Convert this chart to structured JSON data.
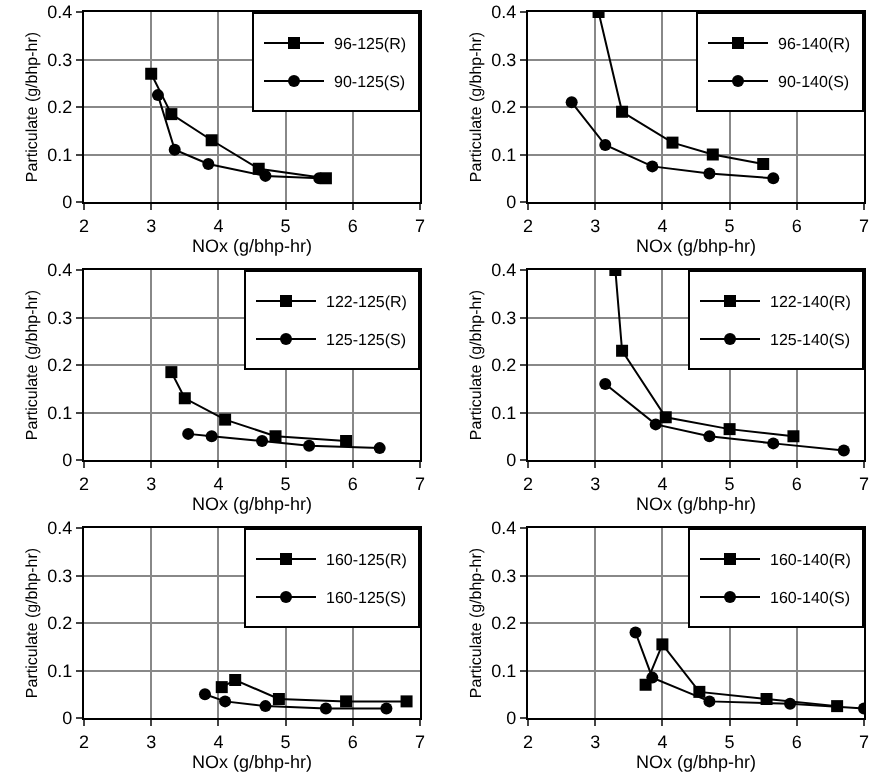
{
  "chart_data": [
    {
      "type": "line",
      "xlabel": "NOx (g/bhp-hr)",
      "ylabel": "Particulate (g/bhp-hr)",
      "xlim": [
        2,
        7
      ],
      "ylim": [
        0,
        0.4
      ],
      "xticks": [
        2,
        3,
        4,
        5,
        6,
        7
      ],
      "yticks": [
        0,
        0.1,
        0.2,
        0.3,
        0.4
      ],
      "grid": true,
      "legend": "top right",
      "series": [
        {
          "name": "96-125(R)",
          "color": "#000000",
          "marker": "square",
          "x": [
            3.0,
            3.3,
            3.9,
            4.6,
            5.6
          ],
          "values": [
            0.27,
            0.185,
            0.13,
            0.07,
            0.05
          ]
        },
        {
          "name": "90-125(S)",
          "color": "#000000",
          "marker": "circle",
          "x": [
            3.1,
            3.35,
            3.85,
            4.7,
            5.5
          ],
          "values": [
            0.225,
            0.11,
            0.08,
            0.055,
            0.05
          ]
        }
      ]
    },
    {
      "type": "line",
      "xlabel": "NOx (g/bhp-hr)",
      "ylabel": "Particulate (g/bhp-hr)",
      "xlim": [
        2,
        7
      ],
      "ylim": [
        0,
        0.4
      ],
      "xticks": [
        2,
        3,
        4,
        5,
        6,
        7
      ],
      "yticks": [
        0,
        0.1,
        0.2,
        0.3,
        0.4
      ],
      "grid": true,
      "legend": "top right",
      "series": [
        {
          "name": "96-140(R)",
          "color": "#000000",
          "marker": "square",
          "x": [
            3.05,
            3.4,
            4.15,
            4.75,
            5.5
          ],
          "values": [
            0.4,
            0.19,
            0.125,
            0.1,
            0.08
          ]
        },
        {
          "name": "90-140(S)",
          "color": "#000000",
          "marker": "circle",
          "x": [
            2.65,
            3.15,
            3.85,
            4.7,
            5.65
          ],
          "values": [
            0.21,
            0.12,
            0.075,
            0.06,
            0.05
          ]
        }
      ]
    },
    {
      "type": "line",
      "xlabel": "NOx (g/bhp-hr)",
      "ylabel": "Particulate (g/bhp-hr)",
      "xlim": [
        2,
        7
      ],
      "ylim": [
        0,
        0.4
      ],
      "xticks": [
        2,
        3,
        4,
        5,
        6,
        7
      ],
      "yticks": [
        0,
        0.1,
        0.2,
        0.3,
        0.4
      ],
      "grid": true,
      "legend": "top right",
      "series": [
        {
          "name": "122-125(R)",
          "color": "#000000",
          "marker": "square",
          "x": [
            3.3,
            3.5,
            4.1,
            4.85,
            5.9
          ],
          "values": [
            0.185,
            0.13,
            0.085,
            0.05,
            0.04
          ]
        },
        {
          "name": "125-125(S)",
          "color": "#000000",
          "marker": "circle",
          "x": [
            3.55,
            3.9,
            4.65,
            5.35,
            6.4
          ],
          "values": [
            0.055,
            0.05,
            0.04,
            0.03,
            0.025
          ]
        }
      ]
    },
    {
      "type": "line",
      "xlabel": "NOx (g/bhp-hr)",
      "ylabel": "Particulate (g/bhp-hr)",
      "xlim": [
        2,
        7
      ],
      "ylim": [
        0,
        0.4
      ],
      "xticks": [
        2,
        3,
        4,
        5,
        6,
        7
      ],
      "yticks": [
        0,
        0.1,
        0.2,
        0.3,
        0.4
      ],
      "grid": true,
      "legend": "top right",
      "series": [
        {
          "name": "122-140(R)",
          "color": "#000000",
          "marker": "square",
          "x": [
            3.3,
            3.4,
            4.05,
            5.0,
            5.95
          ],
          "values": [
            0.4,
            0.23,
            0.09,
            0.065,
            0.05
          ]
        },
        {
          "name": "125-140(S)",
          "color": "#000000",
          "marker": "circle",
          "x": [
            3.15,
            3.9,
            4.7,
            5.65,
            6.7
          ],
          "values": [
            0.16,
            0.075,
            0.05,
            0.035,
            0.02
          ]
        }
      ]
    },
    {
      "type": "line",
      "xlabel": "NOx (g/bhp-hr)",
      "ylabel": "Particulate (g/bhp-hr)",
      "xlim": [
        2,
        7
      ],
      "ylim": [
        0,
        0.4
      ],
      "xticks": [
        2,
        3,
        4,
        5,
        6,
        7
      ],
      "yticks": [
        0,
        0.1,
        0.2,
        0.3,
        0.4
      ],
      "grid": true,
      "legend": "top right",
      "series": [
        {
          "name": "160-125(R)",
          "color": "#000000",
          "marker": "square",
          "x": [
            4.05,
            4.25,
            4.9,
            5.9,
            6.8
          ],
          "values": [
            0.065,
            0.08,
            0.04,
            0.035,
            0.035
          ]
        },
        {
          "name": "160-125(S)",
          "color": "#000000",
          "marker": "circle",
          "x": [
            3.8,
            4.1,
            4.7,
            5.6,
            6.5
          ],
          "values": [
            0.05,
            0.035,
            0.025,
            0.02,
            0.02
          ]
        }
      ]
    },
    {
      "type": "line",
      "xlabel": "NOx (g/bhp-hr)",
      "ylabel": "Particulate (g/bhp-hr)",
      "xlim": [
        2,
        7
      ],
      "ylim": [
        0,
        0.4
      ],
      "xticks": [
        2,
        3,
        4,
        5,
        6,
        7
      ],
      "yticks": [
        0,
        0.1,
        0.2,
        0.3,
        0.4
      ],
      "grid": true,
      "legend": "top right",
      "series": [
        {
          "name": "160-140(R)",
          "color": "#000000",
          "marker": "square",
          "x": [
            3.75,
            4.0,
            4.55,
            5.55,
            6.6
          ],
          "values": [
            0.07,
            0.155,
            0.055,
            0.04,
            0.025
          ]
        },
        {
          "name": "160-140(S)",
          "color": "#000000",
          "marker": "circle",
          "x": [
            3.6,
            3.85,
            4.7,
            5.9,
            7.0
          ],
          "values": [
            0.18,
            0.085,
            0.035,
            0.03,
            0.02
          ]
        }
      ]
    }
  ]
}
